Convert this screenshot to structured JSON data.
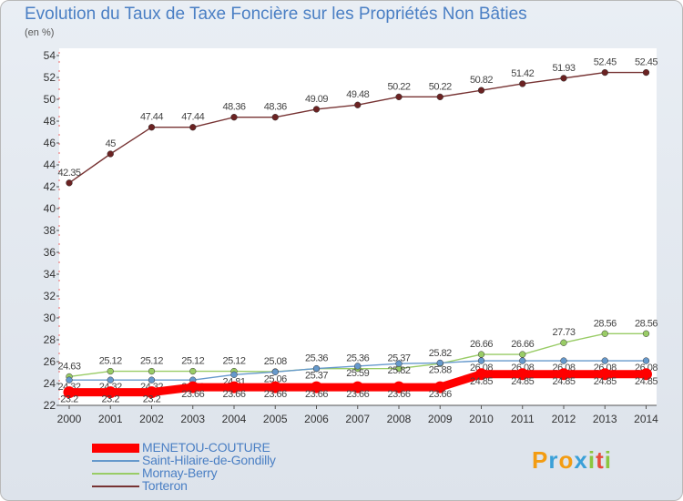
{
  "chart_data": {
    "type": "line",
    "title": "Evolution du Taux de Taxe Foncière sur les Propriétés Non Bâties",
    "subtitle": "(en %)",
    "x": [
      "2000",
      "2001",
      "2002",
      "2003",
      "2004",
      "2005",
      "2006",
      "2007",
      "2008",
      "2009",
      "2010",
      "2011",
      "2012",
      "2013",
      "2014"
    ],
    "ylim": [
      22,
      54
    ],
    "yticks": [
      "22",
      "24",
      "26",
      "28",
      "30",
      "32",
      "34",
      "36",
      "38",
      "40",
      "42",
      "44",
      "46",
      "48",
      "50",
      "52",
      "54"
    ],
    "grid": false,
    "legend_position": "bottom-left",
    "series": [
      {
        "name": "MENETOU-COUTURE",
        "color": "#ff0000",
        "values": [
          23.2,
          23.2,
          23.2,
          23.66,
          23.66,
          23.66,
          23.66,
          23.66,
          23.66,
          23.66,
          24.85,
          24.85,
          24.85,
          24.85,
          24.85
        ],
        "labels": [
          "23.2",
          "23.2",
          "23.2",
          "23.66",
          "23.66",
          "23.66",
          "23.66",
          "23.66",
          "23.66",
          "23.66",
          "24.85",
          "24.85",
          "24.85",
          "24.85",
          "24.85"
        ]
      },
      {
        "name": "Saint-Hilaire-de-Gondilly",
        "color": "#6699cc",
        "values": [
          24.32,
          24.32,
          24.32,
          24.32,
          24.81,
          25.06,
          25.37,
          25.59,
          25.82,
          25.88,
          26.08,
          26.08,
          26.08,
          26.08,
          26.08
        ],
        "labels": [
          "24.32",
          "24.32",
          "24.32",
          "24.32",
          "24.81",
          "25.06",
          "25.37",
          "25.59",
          "25.82",
          "25.88",
          "26.08",
          "26.08",
          "26.08",
          "26.08",
          "26.08"
        ]
      },
      {
        "name": "Mornay-Berry",
        "color": "#99cc66",
        "values": [
          24.63,
          25.12,
          25.12,
          25.12,
          25.12,
          25.08,
          25.36,
          25.36,
          25.37,
          25.82,
          26.66,
          26.66,
          27.73,
          28.56,
          28.56
        ],
        "labels": [
          "24.63",
          "25.12",
          "25.12",
          "25.12",
          "25.12",
          "25.08",
          "25.36",
          "25.36",
          "25.37",
          "25.82",
          "26.66",
          "26.66",
          "27.73",
          "28.56",
          "28.56"
        ]
      },
      {
        "name": "Torteron",
        "color": "#773333",
        "values": [
          42.35,
          45,
          47.44,
          47.44,
          48.36,
          48.36,
          49.09,
          49.48,
          50.22,
          50.22,
          50.82,
          51.42,
          51.93,
          52.45,
          52.45
        ],
        "labels": [
          "42.35",
          "45",
          "47.44",
          "47.44",
          "48.36",
          "48.36",
          "49.09",
          "49.48",
          "50.22",
          "50.22",
          "50.82",
          "51.42",
          "51.93",
          "52.45",
          "52.45"
        ]
      }
    ]
  },
  "branding": {
    "logo_letters": [
      "P",
      "r",
      "o",
      "x",
      "i",
      "t",
      "i"
    ],
    "logo_colors": [
      "#f39c12",
      "#3aa0d8",
      "#f39c12",
      "#3aa0d8",
      "#8cc63f",
      "#e74c3c",
      "#8cc63f"
    ]
  }
}
